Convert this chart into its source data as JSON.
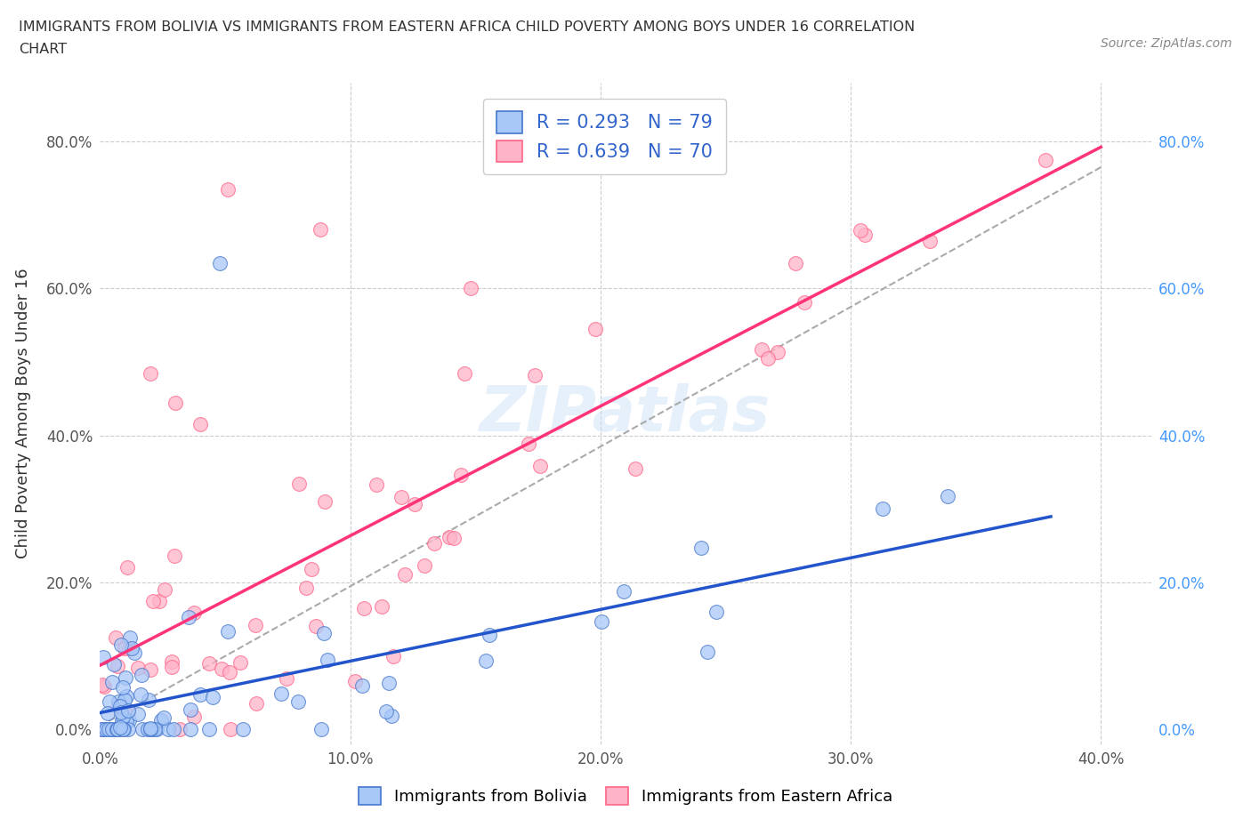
{
  "title_line1": "IMMIGRANTS FROM BOLIVIA VS IMMIGRANTS FROM EASTERN AFRICA CHILD POVERTY AMONG BOYS UNDER 16 CORRELATION",
  "title_line2": "CHART",
  "source": "Source: ZipAtlas.com",
  "ylabel": "Child Poverty Among Boys Under 16",
  "xlim": [
    0.0,
    0.42
  ],
  "ylim": [
    -0.02,
    0.88
  ],
  "xticks": [
    0.0,
    0.1,
    0.2,
    0.3,
    0.4
  ],
  "yticks": [
    0.0,
    0.2,
    0.4,
    0.6,
    0.8
  ],
  "xticklabels": [
    "0.0%",
    "10.0%",
    "20.0%",
    "30.0%",
    "40.0%"
  ],
  "yticklabels_left": [
    "0.0%",
    "20.0%",
    "40.0%",
    "60.0%",
    "80.0%"
  ],
  "yticklabels_right": [
    "0.0%",
    "20.0%",
    "40.0%",
    "60.0%",
    "80.0%"
  ],
  "bolivia_color": "#a8c8f8",
  "eastern_africa_color": "#ffb3c8",
  "bolivia_edge": "#4477cc",
  "eastern_africa_edge": "#ff6688",
  "bolivia_line_color": "#2255cc",
  "eastern_line_color": "#ff3377",
  "dash_line_color": "#aaaaaa",
  "bolivia_R": 0.293,
  "bolivia_N": 79,
  "eastern_africa_R": 0.639,
  "eastern_africa_N": 70,
  "legend_label_bolivia": "Immigrants from Bolivia",
  "legend_label_eastern": "Immigrants from Eastern Africa",
  "watermark": "ZIPatlas",
  "grid_color": "#cccccc",
  "title_color": "#333333",
  "tick_color": "#555555",
  "right_tick_color": "#4499ff",
  "legend_R_color": "#3366cc"
}
